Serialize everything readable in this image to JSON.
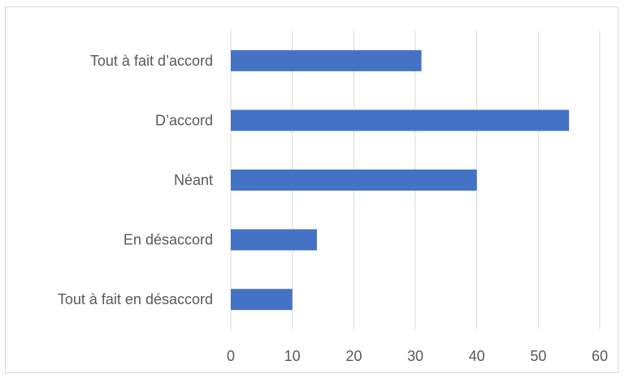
{
  "chart_data": {
    "type": "bar",
    "orientation": "horizontal",
    "categories": [
      "Tout à fait d’accord",
      "D’accord",
      "Néant",
      "En désaccord",
      "Tout à fait en désaccord"
    ],
    "values": [
      31,
      55,
      40,
      14,
      10
    ],
    "xlim": [
      0,
      60
    ],
    "xticks": [
      "0",
      "10",
      "20",
      "30",
      "40",
      "50",
      "60"
    ],
    "grid": true,
    "legend": "none",
    "colors": {
      "bar": "#4472C4",
      "grid": "#d9d9d9",
      "text": "#595959"
    }
  }
}
